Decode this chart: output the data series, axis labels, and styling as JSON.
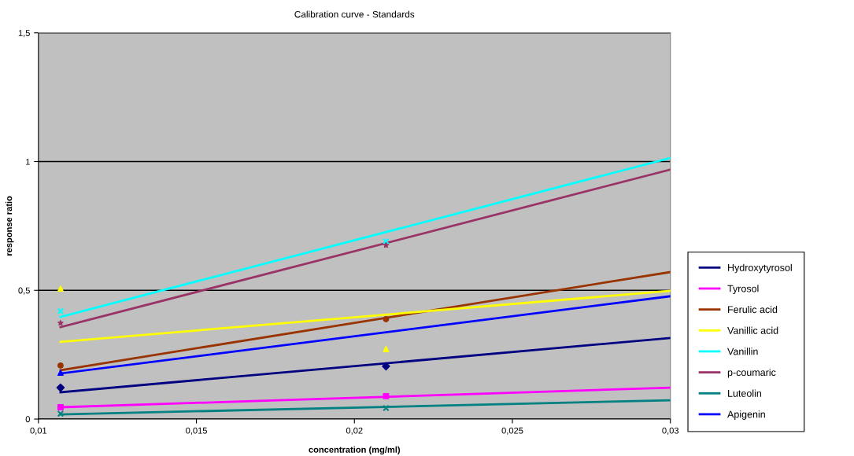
{
  "chart_data": {
    "type": "scatter",
    "title": "Calibration curve - Standards",
    "xlabel": "concentration (mg/ml)",
    "ylabel": "response ratio",
    "xlim": [
      0.01,
      0.03
    ],
    "xticks": [
      {
        "value": 0.01,
        "label": "0,01"
      },
      {
        "value": 0.015,
        "label": "0,015"
      },
      {
        "value": 0.02,
        "label": "0,02"
      },
      {
        "value": 0.025,
        "label": "0,025"
      },
      {
        "value": 0.03,
        "label": "0,03"
      }
    ],
    "ylim": [
      0,
      1.5
    ],
    "yticks": [
      0,
      {
        "value": 0.5,
        "label": "0,5"
      },
      1,
      {
        "value": 1.5,
        "label": "1,5"
      }
    ],
    "grid": "y",
    "legend": "right",
    "series": [
      {
        "type": "line",
        "name": "Hydroxytyrosol",
        "color": "#000080",
        "x": [
          0.0107,
          0.03
        ],
        "values": [
          0.104,
          0.315
        ]
      },
      {
        "type": "line",
        "name": "Tyrosol",
        "color": "#ff00ff",
        "x": [
          0.0107,
          0.03
        ],
        "values": [
          0.046,
          0.122
        ]
      },
      {
        "type": "line",
        "name": "Ferulic acid",
        "color": "#993300",
        "x": [
          0.0107,
          0.03
        ],
        "values": [
          0.19,
          0.571
        ]
      },
      {
        "type": "line",
        "name": "Vanillic acid",
        "color": "#ffff00",
        "x": [
          0.0107,
          0.03
        ],
        "values": [
          0.3,
          0.498
        ]
      },
      {
        "type": "line",
        "name": "Vanillin",
        "color": "#00ffff",
        "x": [
          0.0107,
          0.03
        ],
        "values": [
          0.397,
          1.014
        ]
      },
      {
        "type": "line",
        "name": "p-coumaric",
        "color": "#993366",
        "x": [
          0.0107,
          0.03
        ],
        "values": [
          0.357,
          0.969
        ]
      },
      {
        "type": "line",
        "name": "Luteolin",
        "color": "#008080",
        "x": [
          0.0107,
          0.03
        ],
        "values": [
          0.018,
          0.073
        ]
      },
      {
        "type": "line",
        "name": "Apigenin",
        "color": "#0000ff",
        "x": [
          0.0107,
          0.03
        ],
        "values": [
          0.177,
          0.477
        ]
      },
      {
        "color": "#000080",
        "marker": "diamond",
        "x": [
          0.0107,
          0.021
        ],
        "values": [
          0.122,
          0.205
        ]
      },
      {
        "color": "#ff00ff",
        "marker": "square",
        "x": [
          0.0107,
          0.021
        ],
        "values": [
          0.046,
          0.089
        ]
      },
      {
        "color": "#993300",
        "marker": "circle",
        "x": [
          0.0107,
          0.021
        ],
        "values": [
          0.208,
          0.388
        ]
      },
      {
        "color": "#ffff00",
        "marker": "triangle",
        "x": [
          0.0107,
          0.021
        ],
        "values": [
          0.507,
          0.272
        ]
      },
      {
        "color": "#00ffff",
        "marker": "cross",
        "x": [
          0.0107,
          0.021
        ],
        "values": [
          0.419,
          0.69
        ]
      },
      {
        "color": "#993366",
        "marker": "star",
        "x": [
          0.0107,
          0.021
        ],
        "values": [
          0.373,
          0.675
        ]
      },
      {
        "color": "#008080",
        "marker": "cross",
        "x": [
          0.0107,
          0.021
        ],
        "values": [
          0.021,
          0.043
        ]
      },
      {
        "color": "#0000ff",
        "marker": "triangle",
        "x": [
          0.0107
        ],
        "values": [
          0.18
        ]
      }
    ]
  }
}
